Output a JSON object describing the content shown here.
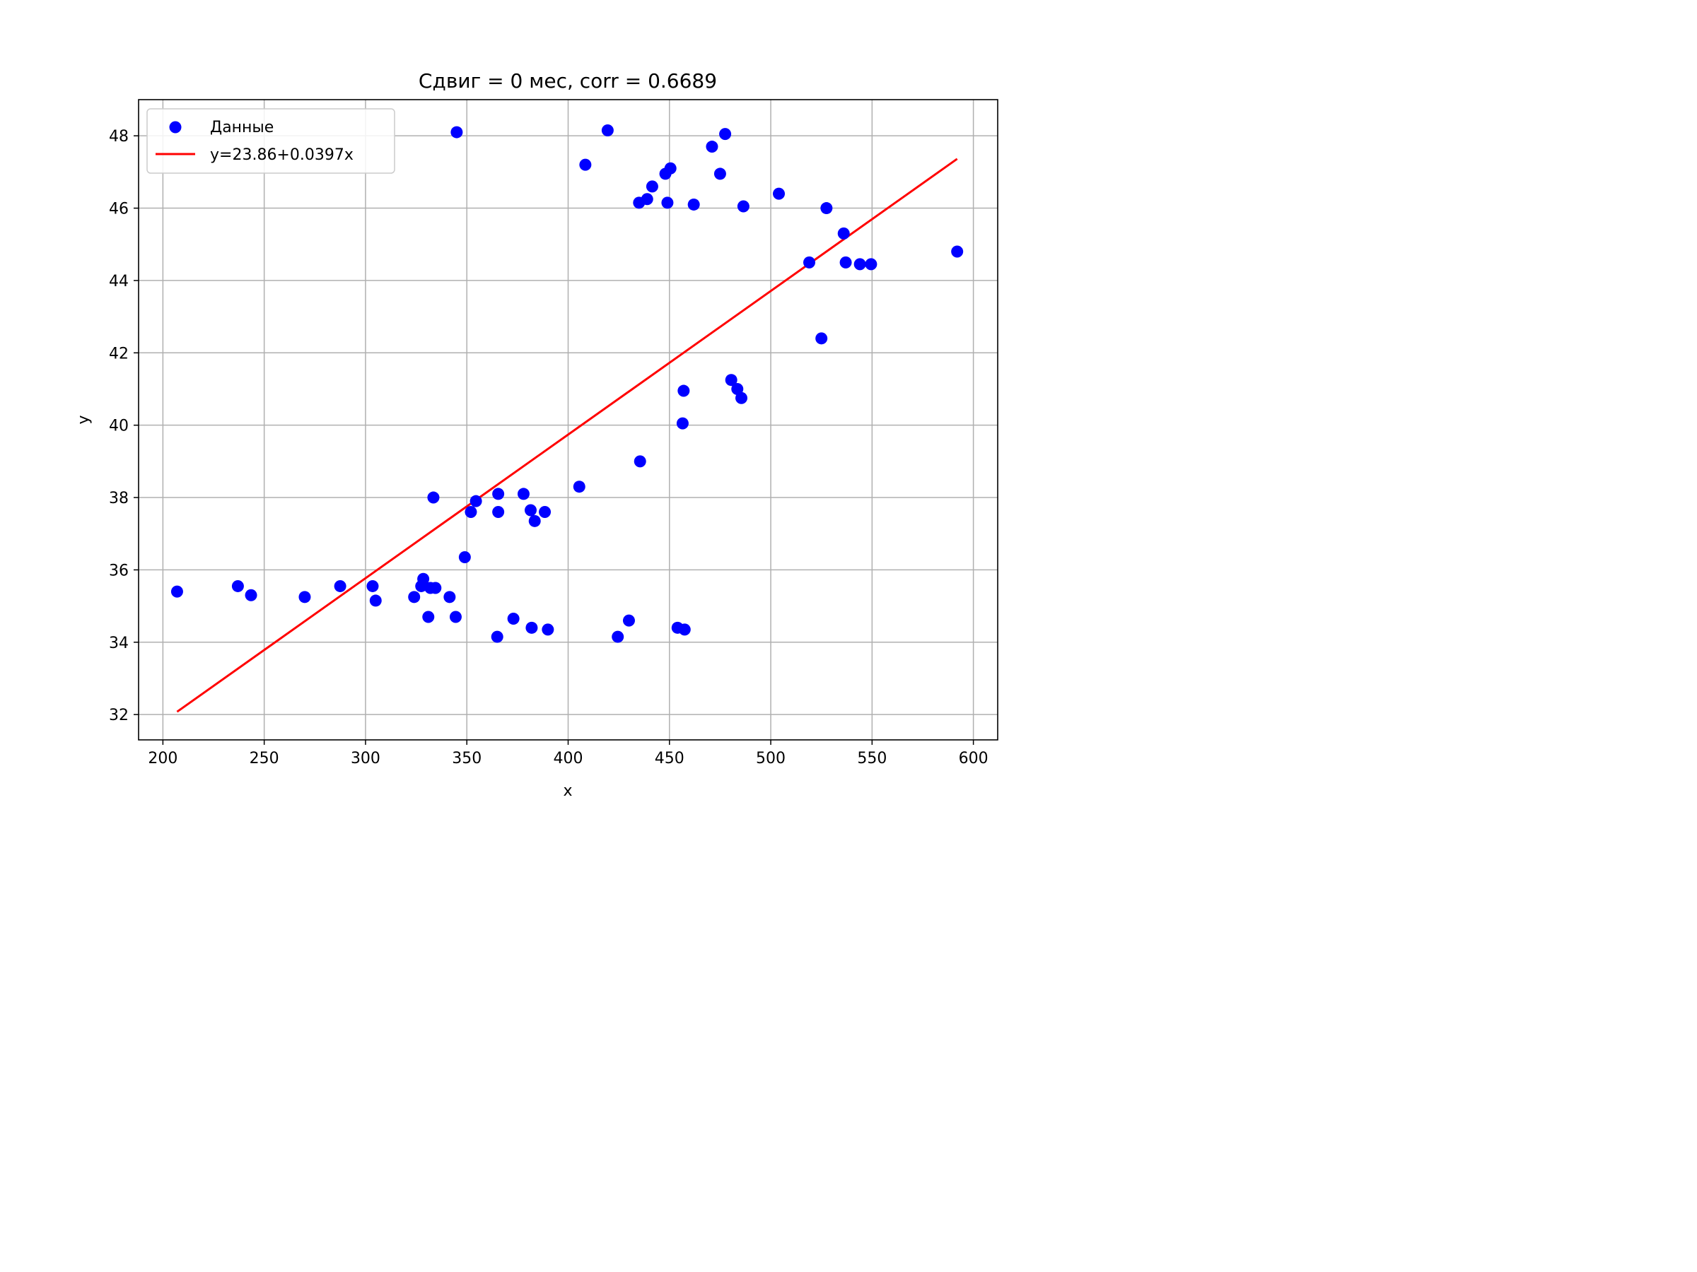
{
  "chart_data": {
    "type": "scatter",
    "title": "Сдвиг = 0 мес, corr = 0.6689",
    "xlabel": "x",
    "ylabel": "y",
    "xlim": [
      188,
      612
    ],
    "ylim": [
      31.3,
      49.0
    ],
    "x_ticks": [
      200,
      250,
      300,
      350,
      400,
      450,
      500,
      550,
      600
    ],
    "y_ticks": [
      32,
      34,
      36,
      38,
      40,
      42,
      44,
      46,
      48
    ],
    "grid": true,
    "legend_position": "upper-left",
    "colors": {
      "points": "#0000ff",
      "fit_line": "#ff0000",
      "grid": "#b0b0b0"
    },
    "series": [
      {
        "name": "Данные",
        "kind": "scatter",
        "points": [
          [
            207,
            35.4
          ],
          [
            237,
            35.55
          ],
          [
            243.5,
            35.3
          ],
          [
            270,
            35.25
          ],
          [
            287.5,
            35.55
          ],
          [
            303.5,
            35.55
          ],
          [
            305,
            35.15
          ],
          [
            324,
            35.25
          ],
          [
            327.5,
            35.55
          ],
          [
            328.5,
            35.75
          ],
          [
            331,
            34.7
          ],
          [
            332,
            35.5
          ],
          [
            333.5,
            38.0
          ],
          [
            334.5,
            35.5
          ],
          [
            341.5,
            35.25
          ],
          [
            344.5,
            34.7
          ],
          [
            345,
            48.1
          ],
          [
            349,
            36.35
          ],
          [
            352,
            37.6
          ],
          [
            354.5,
            37.9
          ],
          [
            365,
            34.15
          ],
          [
            365.5,
            38.1
          ],
          [
            365.5,
            37.6
          ],
          [
            373,
            34.65
          ],
          [
            378,
            38.1
          ],
          [
            381.5,
            37.65
          ],
          [
            382,
            34.4
          ],
          [
            383.5,
            37.35
          ],
          [
            388.5,
            37.6
          ],
          [
            390,
            34.35
          ],
          [
            405.5,
            38.3
          ],
          [
            408.5,
            47.2
          ],
          [
            419.5,
            48.15
          ],
          [
            424.5,
            34.15
          ],
          [
            430,
            34.6
          ],
          [
            435,
            46.15
          ],
          [
            435.5,
            39.0
          ],
          [
            439,
            46.25
          ],
          [
            441.5,
            46.6
          ],
          [
            448,
            46.95
          ],
          [
            449,
            46.15
          ],
          [
            450.5,
            47.1
          ],
          [
            454,
            34.4
          ],
          [
            456.5,
            40.05
          ],
          [
            457,
            40.95
          ],
          [
            457.5,
            34.35
          ],
          [
            462,
            46.1
          ],
          [
            471,
            47.7
          ],
          [
            475,
            46.95
          ],
          [
            477.5,
            48.05
          ],
          [
            480.5,
            41.25
          ],
          [
            483.5,
            41.0
          ],
          [
            485.5,
            40.75
          ],
          [
            486.5,
            46.05
          ],
          [
            504,
            46.4
          ],
          [
            519,
            44.5
          ],
          [
            525,
            42.4
          ],
          [
            527.5,
            46.0
          ],
          [
            536,
            45.3
          ],
          [
            537,
            44.5
          ],
          [
            544,
            44.45
          ],
          [
            549.5,
            44.45
          ],
          [
            592,
            44.8
          ]
        ]
      },
      {
        "name": "y=23.86+0.0397x",
        "kind": "line",
        "intercept": 23.86,
        "slope": 0.0397,
        "x_range": [
          207,
          592
        ]
      }
    ]
  }
}
